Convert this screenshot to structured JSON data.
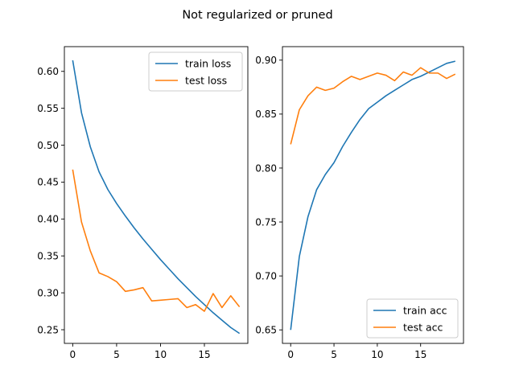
{
  "figure": {
    "suptitle": "Not regularized or pruned"
  },
  "colors": {
    "train": "#1f77b4",
    "test": "#ff7f0e"
  },
  "chart_data": [
    {
      "type": "line",
      "title": "",
      "xlabel": "",
      "ylabel": "",
      "xlim": [
        -0.95,
        19.95
      ],
      "ylim": [
        0.2315,
        0.6335
      ],
      "xticks": [
        0,
        5,
        10,
        15
      ],
      "yticks": [
        0.25,
        0.3,
        0.35,
        0.4,
        0.45,
        0.5,
        0.55,
        0.6
      ],
      "yticklabels": [
        "0.25",
        "0.30",
        "0.35",
        "0.40",
        "0.45",
        "0.50",
        "0.55",
        "0.60"
      ],
      "legend": "top-right",
      "x": [
        0,
        1,
        2,
        3,
        4,
        5,
        6,
        7,
        8,
        9,
        10,
        11,
        12,
        13,
        14,
        15,
        16,
        17,
        18,
        19
      ],
      "series": [
        {
          "name": "train loss",
          "color": "#1f77b4",
          "values": [
            0.615,
            0.544,
            0.498,
            0.464,
            0.44,
            0.421,
            0.404,
            0.388,
            0.373,
            0.359,
            0.345,
            0.332,
            0.319,
            0.307,
            0.295,
            0.284,
            0.273,
            0.263,
            0.253,
            0.245
          ]
        },
        {
          "name": "test loss",
          "color": "#ff7f0e",
          "values": [
            0.467,
            0.396,
            0.357,
            0.327,
            0.322,
            0.315,
            0.302,
            0.304,
            0.307,
            0.289,
            0.29,
            0.291,
            0.292,
            0.28,
            0.284,
            0.275,
            0.299,
            0.28,
            0.296,
            0.281
          ]
        }
      ]
    },
    {
      "type": "line",
      "title": "",
      "xlabel": "",
      "ylabel": "",
      "xlim": [
        -0.95,
        19.95
      ],
      "ylim": [
        0.6375,
        0.9125
      ],
      "xticks": [
        0,
        5,
        10,
        15
      ],
      "yticks": [
        0.65,
        0.7,
        0.75,
        0.8,
        0.85,
        0.9
      ],
      "yticklabels": [
        "0.65",
        "0.70",
        "0.75",
        "0.80",
        "0.85",
        "0.90"
      ],
      "legend": "bottom-right",
      "x": [
        0,
        1,
        2,
        3,
        4,
        5,
        6,
        7,
        8,
        9,
        10,
        11,
        12,
        13,
        14,
        15,
        16,
        17,
        18,
        19
      ],
      "series": [
        {
          "name": "train acc",
          "color": "#1f77b4",
          "values": [
            0.65,
            0.718,
            0.755,
            0.78,
            0.794,
            0.805,
            0.82,
            0.833,
            0.845,
            0.855,
            0.861,
            0.867,
            0.872,
            0.877,
            0.882,
            0.885,
            0.889,
            0.893,
            0.897,
            0.899
          ]
        },
        {
          "name": "test acc",
          "color": "#ff7f0e",
          "values": [
            0.822,
            0.854,
            0.867,
            0.875,
            0.872,
            0.874,
            0.88,
            0.885,
            0.882,
            0.885,
            0.888,
            0.886,
            0.881,
            0.889,
            0.886,
            0.893,
            0.888,
            0.888,
            0.883,
            0.887
          ]
        }
      ]
    }
  ]
}
